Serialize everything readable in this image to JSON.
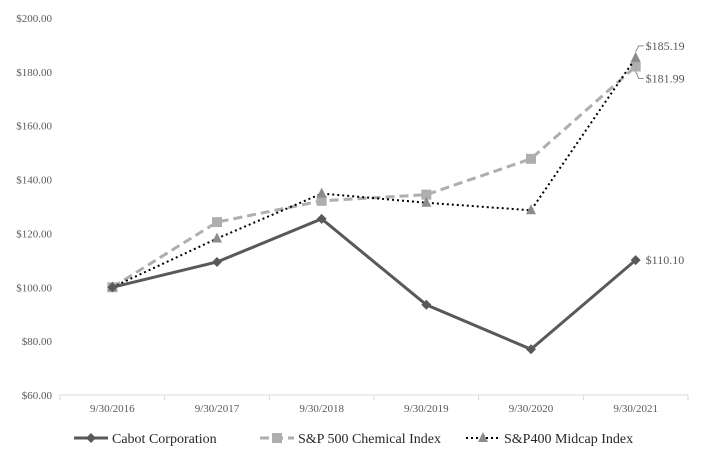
{
  "chart_data": {
    "type": "line",
    "title": "",
    "xlabel": "",
    "ylabel": "",
    "categories": [
      "9/30/2016",
      "9/30/2017",
      "9/30/2018",
      "9/30/2019",
      "9/30/2020",
      "9/30/2021"
    ],
    "ylim": [
      60,
      200
    ],
    "yticks": [
      "$60.00",
      "$80.00",
      "$100.00",
      "$120.00",
      "$140.00",
      "$160.00",
      "$180.00",
      "$200.00"
    ],
    "ytick_values": [
      60,
      80,
      100,
      120,
      140,
      160,
      180,
      200
    ],
    "grid": false,
    "legend_position": "bottom",
    "series": [
      {
        "name": "Cabot Corporation",
        "values": [
          100,
          109.4,
          125.4,
          93.5,
          77.0,
          110.1
        ],
        "color": "#595959",
        "style": "solid",
        "marker": "diamond"
      },
      {
        "name": "S&P 500 Chemical Index",
        "values": [
          100,
          124.2,
          132.1,
          134.4,
          147.7,
          181.99
        ],
        "color": "#aeaeae",
        "style": "dashed",
        "marker": "square"
      },
      {
        "name": "S&P400 Midcap Index",
        "values": [
          100,
          118.1,
          134.8,
          131.4,
          128.6,
          185.19
        ],
        "color": "#000000",
        "style": "dotted",
        "marker": "triangle",
        "marker_color": "#8c8c8c"
      }
    ],
    "annotations": [
      {
        "series": 0,
        "label": "$110.10"
      },
      {
        "series": 1,
        "label": "$181.99"
      },
      {
        "series": 2,
        "label": "$185.19"
      }
    ]
  }
}
